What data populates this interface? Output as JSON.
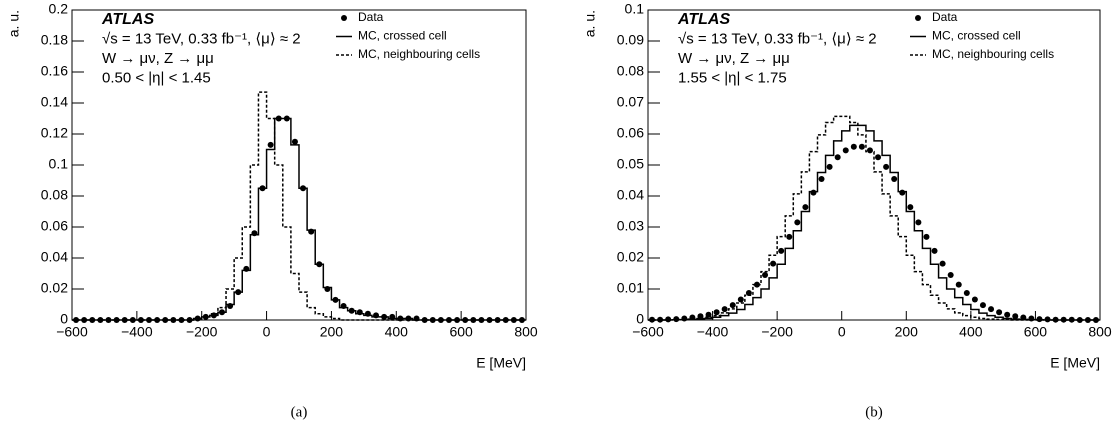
{
  "chart_data": [
    {
      "type": "histogram",
      "annotations": [
        "ATLAS",
        "√s = 13 TeV, 0.33 fb⁻¹, ⟨μ⟩ ≈ 2",
        "W → μν, Z → μμ",
        "0.50 < |η| < 1.45"
      ],
      "x_label": "E [MeV]",
      "y_label": "a. u.",
      "caption": "(a)",
      "bins": [
        -600,
        -575,
        -550,
        -525,
        -500,
        -475,
        -450,
        -425,
        -400,
        -375,
        -350,
        -325,
        -300,
        -275,
        -250,
        -225,
        -200,
        -175,
        -150,
        -125,
        -100,
        -75,
        -50,
        -25,
        0,
        25,
        50,
        75,
        100,
        125,
        150,
        175,
        200,
        225,
        250,
        275,
        300,
        325,
        350,
        375,
        400,
        425,
        450,
        475,
        500,
        525,
        550,
        575,
        600,
        625,
        650,
        675,
        700,
        725,
        750,
        775,
        800
      ],
      "xlim": [
        -600,
        800
      ],
      "xticks": [
        {
          "value": -600,
          "label": "−600"
        },
        {
          "value": -400,
          "label": "−400"
        },
        {
          "value": -200,
          "label": "−200"
        },
        0,
        200,
        400,
        600,
        800
      ],
      "ylim": [
        0,
        0.2
      ],
      "yticks": [
        0,
        0.02,
        0.04,
        0.06,
        0.08,
        0.1,
        0.12,
        0.14,
        0.16,
        0.18,
        0.2
      ],
      "legend": "top-right",
      "series": [
        {
          "name": "Data",
          "color": "#000000",
          "style": "points",
          "values": [
            0,
            0,
            0,
            0,
            0,
            0,
            0,
            0,
            0,
            0,
            0,
            0,
            0,
            0,
            0,
            0.001,
            0.002,
            0.003,
            0.005,
            0.009,
            0.018,
            0.033,
            0.056,
            0.085,
            0.113,
            0.13,
            0.13,
            0.115,
            0.085,
            0.057,
            0.036,
            0.02,
            0.013,
            0.009,
            0.006,
            0.005,
            0.004,
            0.003,
            0.002,
            0.002,
            0.001,
            0.001,
            0.001,
            0,
            0,
            0,
            0,
            0,
            0,
            0,
            0,
            0,
            0,
            0,
            0,
            0
          ]
        },
        {
          "name": "MC, crossed cell",
          "color": "#000000",
          "style": "solid",
          "values": [
            0,
            0,
            0,
            0,
            0,
            0,
            0,
            0,
            0,
            0,
            0,
            0,
            0,
            0,
            0,
            0.001,
            0.002,
            0.003,
            0.005,
            0.01,
            0.018,
            0.032,
            0.055,
            0.085,
            0.11,
            0.13,
            0.13,
            0.113,
            0.085,
            0.058,
            0.036,
            0.021,
            0.013,
            0.008,
            0.006,
            0.004,
            0.003,
            0.002,
            0.002,
            0.001,
            0.001,
            0.001,
            0,
            0,
            0,
            0,
            0,
            0,
            0,
            0,
            0,
            0,
            0,
            0,
            0,
            0
          ]
        },
        {
          "name": "MC, neighbouring cells",
          "color": "#000000",
          "style": "dashed",
          "values": [
            0,
            0,
            0,
            0,
            0,
            0,
            0,
            0,
            0,
            0,
            0,
            0,
            0,
            0,
            0,
            0.001,
            0.002,
            0.004,
            0.008,
            0.02,
            0.04,
            0.06,
            0.1,
            0.147,
            0.13,
            0.1,
            0.06,
            0.03,
            0.018,
            0.008,
            0.004,
            0.002,
            0.001,
            0,
            0,
            0,
            0,
            0,
            0,
            0,
            0,
            0,
            0,
            0,
            0,
            0,
            0,
            0,
            0,
            0,
            0,
            0,
            0,
            0,
            0,
            0
          ]
        }
      ]
    },
    {
      "type": "histogram",
      "annotations": [
        "ATLAS",
        "√s = 13 TeV, 0.33 fb⁻¹, ⟨μ⟩ ≈ 2",
        "W → μν, Z → μμ",
        "1.55 < |η| < 1.75"
      ],
      "x_label": "E [MeV]",
      "y_label": "a. u.",
      "caption": "(b)",
      "bins": [
        -600,
        -575,
        -550,
        -525,
        -500,
        -475,
        -450,
        -425,
        -400,
        -375,
        -350,
        -325,
        -300,
        -275,
        -250,
        -225,
        -200,
        -175,
        -150,
        -125,
        -100,
        -75,
        -50,
        -25,
        0,
        25,
        50,
        75,
        100,
        125,
        150,
        175,
        200,
        225,
        250,
        275,
        300,
        325,
        350,
        375,
        400,
        425,
        450,
        475,
        500,
        525,
        550,
        575,
        600,
        625,
        650,
        675,
        700,
        725,
        750,
        775,
        800
      ],
      "xlim": [
        -600,
        800
      ],
      "xticks": [
        {
          "value": -600,
          "label": "−600"
        },
        {
          "value": -400,
          "label": "−400"
        },
        {
          "value": -200,
          "label": "−200"
        },
        0,
        200,
        400,
        600,
        800
      ],
      "ylim": [
        0,
        0.1
      ],
      "yticks": [
        0,
        0.01,
        0.02,
        0.03,
        0.04,
        0.05,
        0.06,
        0.07,
        0.08,
        0.09,
        0.1
      ],
      "legend": "top-right",
      "series": [
        {
          "name": "Data",
          "color": "#000000",
          "style": "points",
          "values": [
            0.0001,
            0.0001,
            0.0002,
            0.0003,
            0.0005,
            0.0008,
            0.0012,
            0.0017,
            0.0025,
            0.0035,
            0.0048,
            0.0066,
            0.0087,
            0.0114,
            0.0145,
            0.0182,
            0.0223,
            0.0268,
            0.0315,
            0.0364,
            0.0411,
            0.0455,
            0.0494,
            0.0525,
            0.0547,
            0.0559,
            0.0559,
            0.0547,
            0.0525,
            0.0494,
            0.0455,
            0.0411,
            0.0364,
            0.0315,
            0.0268,
            0.0223,
            0.0182,
            0.0145,
            0.0114,
            0.0087,
            0.0066,
            0.0048,
            0.0035,
            0.0025,
            0.0017,
            0.0012,
            0.0008,
            0.0005,
            0.0003,
            0.0002,
            0.0001,
            0.0001,
            0.0001,
            0,
            0,
            0
          ]
        },
        {
          "name": "MC, crossed cell",
          "color": "#000000",
          "style": "solid",
          "values": [
            0,
            0,
            0,
            0.0001,
            0.0001,
            0.0002,
            0.0003,
            0.0005,
            0.0009,
            0.0014,
            0.0022,
            0.0034,
            0.005,
            0.0072,
            0.01,
            0.0136,
            0.018,
            0.0231,
            0.0288,
            0.035,
            0.0414,
            0.0476,
            0.0531,
            0.0578,
            0.061,
            0.0628,
            0.0628,
            0.061,
            0.0578,
            0.0531,
            0.0476,
            0.0414,
            0.035,
            0.0288,
            0.0231,
            0.018,
            0.0136,
            0.01,
            0.0072,
            0.005,
            0.0034,
            0.0022,
            0.0014,
            0.0009,
            0.0005,
            0.0003,
            0.0002,
            0.0001,
            0.0001,
            0,
            0,
            0,
            0,
            0,
            0,
            0
          ]
        },
        {
          "name": "MC, neighbouring cells",
          "color": "#000000",
          "style": "dashed",
          "values": [
            0,
            0,
            0,
            0.0001,
            0.0002,
            0.0003,
            0.0005,
            0.0009,
            0.0014,
            0.0023,
            0.0036,
            0.0055,
            0.008,
            0.0114,
            0.0156,
            0.0209,
            0.0269,
            0.0336,
            0.0407,
            0.0478,
            0.0543,
            0.0597,
            0.0637,
            0.0657,
            0.0657,
            0.0637,
            0.0597,
            0.0543,
            0.0478,
            0.0407,
            0.0336,
            0.0269,
            0.0209,
            0.0156,
            0.0114,
            0.008,
            0.0055,
            0.0036,
            0.0023,
            0.0014,
            0.0009,
            0.0005,
            0.0003,
            0.0002,
            0.0001,
            0,
            0,
            0,
            0,
            0,
            0,
            0,
            0,
            0,
            0,
            0
          ]
        }
      ]
    }
  ]
}
